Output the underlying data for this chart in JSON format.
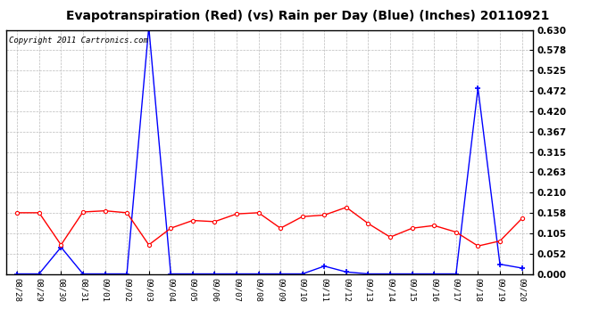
{
  "title": "Evapotranspiration (Red) (vs) Rain per Day (Blue) (Inches) 20110921",
  "copyright": "Copyright 2011 Cartronics.com",
  "x_labels": [
    "08/28",
    "08/29",
    "08/30",
    "08/31",
    "09/01",
    "09/02",
    "09/03",
    "09/04",
    "09/05",
    "09/06",
    "09/07",
    "09/08",
    "09/09",
    "09/10",
    "09/11",
    "09/12",
    "09/13",
    "09/14",
    "09/15",
    "09/16",
    "09/17",
    "09/18",
    "09/19",
    "09/20"
  ],
  "blue_data": [
    0.0,
    0.0,
    0.069,
    0.0,
    0.0,
    0.0,
    0.638,
    0.0,
    0.0,
    0.0,
    0.0,
    0.0,
    0.0,
    0.0,
    0.02,
    0.005,
    0.0,
    0.0,
    0.0,
    0.0,
    0.0,
    0.48,
    0.025,
    0.015
  ],
  "red_data": [
    0.158,
    0.158,
    0.075,
    0.16,
    0.163,
    0.158,
    0.075,
    0.118,
    0.138,
    0.135,
    0.155,
    0.158,
    0.118,
    0.148,
    0.152,
    0.172,
    0.13,
    0.095,
    0.118,
    0.125,
    0.108,
    0.072,
    0.085,
    0.143
  ],
  "ylim": [
    0.0,
    0.63
  ],
  "yticks": [
    0.0,
    0.052,
    0.105,
    0.158,
    0.21,
    0.263,
    0.315,
    0.367,
    0.42,
    0.472,
    0.525,
    0.578,
    0.63
  ],
  "background_color": "#ffffff",
  "grid_color": "#bbbbbb",
  "blue_color": "#0000ff",
  "red_color": "#ff0000",
  "title_fontsize": 10,
  "copyright_fontsize": 6.5
}
